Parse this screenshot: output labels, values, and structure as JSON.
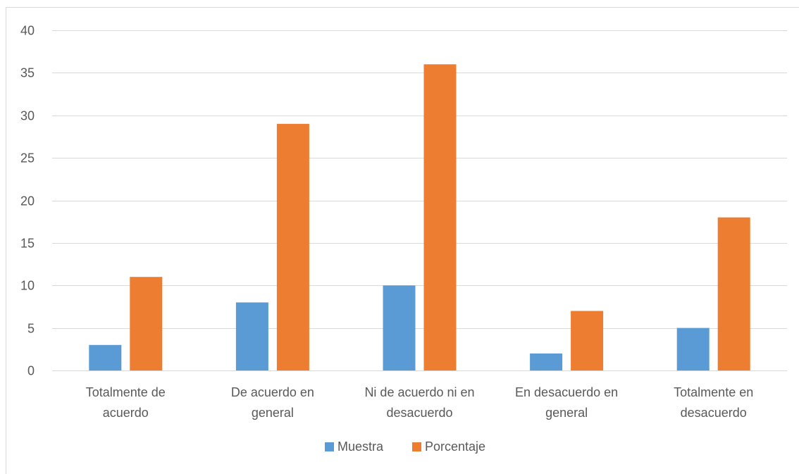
{
  "chart_data": {
    "type": "bar",
    "title": "",
    "xlabel": "",
    "ylabel": "",
    "categories": [
      [
        "Totalmente de",
        "acuerdo"
      ],
      [
        "De acuerdo en",
        "general"
      ],
      [
        "Ni de acuerdo ni en",
        "desacuerdo"
      ],
      [
        "En desacuerdo en",
        "general"
      ],
      [
        "Totalmente en",
        "desacuerdo"
      ]
    ],
    "series": [
      {
        "name": "Muestra",
        "color": "#5b9bd5",
        "values": [
          3,
          8,
          10,
          2,
          5
        ]
      },
      {
        "name": "Porcentaje",
        "color": "#ed7d31",
        "values": [
          11,
          29,
          36,
          7,
          18
        ]
      }
    ],
    "ylim": [
      0,
      40
    ],
    "yticks": [
      "0",
      "5",
      "10",
      "15",
      "20",
      "25",
      "30",
      "35",
      "40"
    ],
    "grid": true,
    "legend_position": "bottom",
    "colors": {
      "gridline": "#d9d9d9",
      "text": "#595959"
    }
  }
}
